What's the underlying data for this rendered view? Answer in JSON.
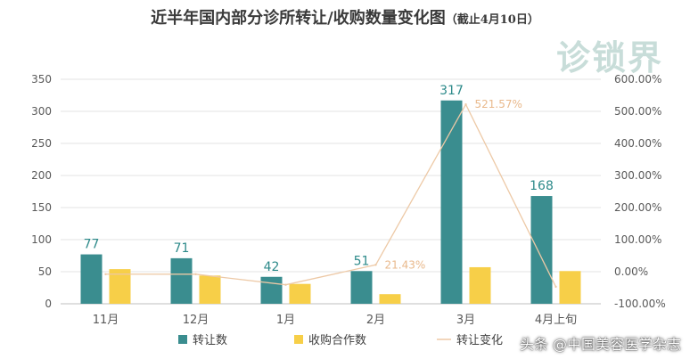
{
  "title": "近半年国内部分诊所转让/收购数量变化图",
  "subtitle": "（截止4月10日）",
  "watermark": "诊锁界",
  "attribution": "头条 @中国美容医学杂志",
  "colors": {
    "transfer": "#3a8d8f",
    "acquisition": "#f7cf48",
    "change": "#edc9a6",
    "transfer_label": "#2d8a8a",
    "pct_label": "#e9b98c"
  },
  "chart_data": {
    "type": "bar",
    "categories": [
      "11月",
      "12月",
      "1月",
      "2月",
      "3月",
      "4月上旬"
    ],
    "series": [
      {
        "name": "转让数",
        "type": "bar",
        "axis": "left",
        "values": [
          77,
          71,
          42,
          51,
          317,
          168
        ],
        "labels": [
          "77",
          "71",
          "42",
          "51",
          "317",
          "168"
        ]
      },
      {
        "name": "收购合作数",
        "type": "bar",
        "axis": "left",
        "values": [
          54,
          44,
          31,
          15,
          57,
          51
        ]
      },
      {
        "name": "转让变化",
        "type": "line",
        "axis": "right",
        "values": [
          -7.7,
          -7.8,
          -40.8,
          21.43,
          521.57,
          -47.0
        ],
        "labels": [
          "",
          "",
          "",
          "21.43%",
          "521.57%",
          ""
        ]
      }
    ],
    "y_left": {
      "min": 0,
      "max": 350,
      "ticks": [
        "0",
        "50",
        "100",
        "150",
        "200",
        "250",
        "300",
        "350"
      ]
    },
    "y_right": {
      "min": -100,
      "max": 600,
      "ticks": [
        "-100.00%",
        "0.00%",
        "100.00%",
        "200.00%",
        "300.00%",
        "400.00%",
        "500.00%",
        "600.00%"
      ]
    },
    "grid": true,
    "legend_position": "bottom"
  }
}
